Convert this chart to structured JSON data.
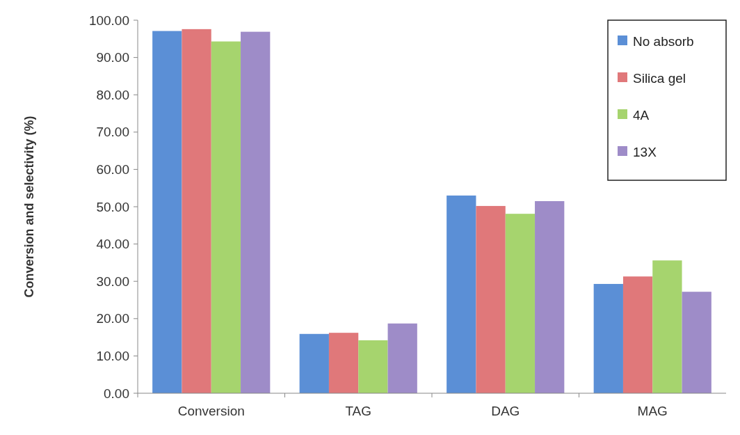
{
  "chart_data": {
    "type": "bar",
    "ylabel": "Conversion and selectivity (%)",
    "categories": [
      "Conversion",
      "TAG",
      "DAG",
      "MAG"
    ],
    "series": [
      {
        "name": "No absorb",
        "color": "#5b8fd6",
        "values": [
          97.1,
          15.9,
          53.0,
          29.3
        ]
      },
      {
        "name": "Silica gel",
        "color": "#e0787a",
        "values": [
          97.6,
          16.2,
          50.2,
          31.3
        ]
      },
      {
        "name": "4A",
        "color": "#a6d46e",
        "values": [
          94.3,
          14.2,
          48.1,
          35.6
        ]
      },
      {
        "name": "13X",
        "color": "#9e8cc8",
        "values": [
          96.9,
          18.7,
          51.5,
          27.2
        ]
      }
    ],
    "ylim": [
      0,
      100
    ],
    "yticks": [
      {
        "value": 0,
        "label": "0.00"
      },
      {
        "value": 10,
        "label": "10.00"
      },
      {
        "value": 20,
        "label": "20.00"
      },
      {
        "value": 30,
        "label": "30.00"
      },
      {
        "value": 40,
        "label": "40.00"
      },
      {
        "value": 50,
        "label": "50.00"
      },
      {
        "value": 60,
        "label": "60.00"
      },
      {
        "value": 70,
        "label": "70.00"
      },
      {
        "value": 80,
        "label": "80.00"
      },
      {
        "value": 90,
        "label": "90.00"
      },
      {
        "value": 100,
        "label": "100.00"
      }
    ],
    "grid": false,
    "legend": "top right"
  }
}
